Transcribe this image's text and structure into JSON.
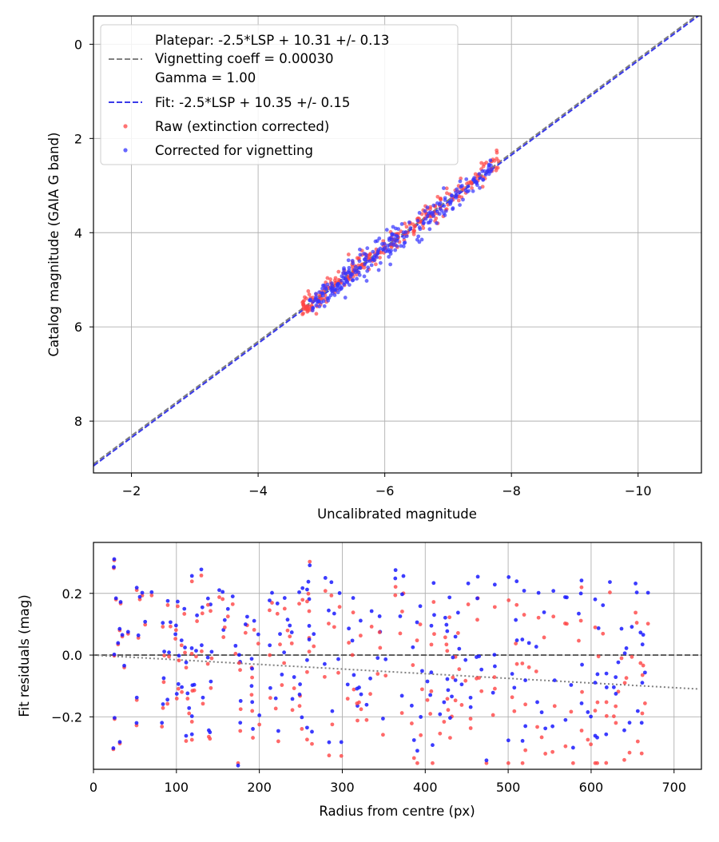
{
  "chart_data": [
    {
      "type": "scatter",
      "panel": "top",
      "xlabel": "Uncalibrated magnitude",
      "ylabel": "Catalog magnitude (GAIA G band)",
      "xlim": [
        -1.4,
        -11.0
      ],
      "ylim": [
        9.1,
        -0.6
      ],
      "x_inverted": true,
      "y_inverted": true,
      "x_ticks": [
        -2,
        -4,
        -6,
        -8,
        -10
      ],
      "x_tick_labels": [
        "−2",
        "−4",
        "−6",
        "−8",
        "−10"
      ],
      "y_ticks": [
        0,
        2,
        4,
        6,
        8
      ],
      "y_tick_labels": [
        "0",
        "2",
        "4",
        "6",
        "8"
      ],
      "grid": true,
      "legend_position": "upper-left",
      "legend": [
        "Platepar: -2.5*LSP + 10.31 +/- 0.13",
        "Vignetting coeff = 0.00030",
        "Gamma = 1.00",
        "Fit: -2.5*LSP + 10.35 +/- 0.15",
        "Raw (extinction corrected)",
        "Corrected for vignetting"
      ],
      "lines": [
        {
          "name": "Platepar",
          "slope": 1.0,
          "intercept": 10.31,
          "color": "#808080",
          "style": "dashed"
        },
        {
          "name": "Fit",
          "slope": 1.0,
          "intercept": 10.35,
          "color": "#3a3ae8",
          "style": "dashed"
        }
      ],
      "series": [
        {
          "name": "Raw (extinction corrected)",
          "color": "#ff4444",
          "x_range": [
            -4.7,
            -7.8
          ],
          "y_relation": "y = x + 10.31",
          "scatter_sd": 0.13,
          "n": 260
        },
        {
          "name": "Corrected for vignetting",
          "color": "#3333ff",
          "x_range": [
            -4.8,
            -7.7
          ],
          "y_relation": "y = x + 10.35",
          "scatter_sd": 0.15,
          "n": 260
        }
      ]
    },
    {
      "type": "scatter",
      "panel": "bottom",
      "xlabel": "Radius from centre (px)",
      "ylabel": "Fit residuals (mag)",
      "xlim": [
        0,
        733
      ],
      "ylim": [
        -0.37,
        0.365
      ],
      "x_ticks": [
        0,
        100,
        200,
        300,
        400,
        500,
        600,
        700
      ],
      "x_tick_labels": [
        "0",
        "100",
        "200",
        "300",
        "400",
        "500",
        "600",
        "700"
      ],
      "y_ticks": [
        -0.2,
        0.0,
        0.2
      ],
      "y_tick_labels": [
        "−0.2",
        "0.0",
        "0.2"
      ],
      "grid": true,
      "reference_lines": [
        {
          "name": "zero",
          "y": 0.0,
          "color": "#606060",
          "style": "dashed"
        },
        {
          "name": "vignetting trend",
          "points": [
            [
              0,
              0.0
            ],
            [
              730,
              -0.11
            ]
          ],
          "color": "#808080",
          "style": "dotted"
        }
      ],
      "series": [
        {
          "name": "Raw (extinction corrected)",
          "color": "#ff4444",
          "x_range": [
            20,
            670
          ],
          "y_range": [
            -0.35,
            0.33
          ],
          "n": 260
        },
        {
          "name": "Corrected for vignetting",
          "color": "#1a1aff",
          "x_range": [
            20,
            670
          ],
          "y_range": [
            -0.35,
            0.33
          ],
          "n": 260
        }
      ]
    }
  ]
}
